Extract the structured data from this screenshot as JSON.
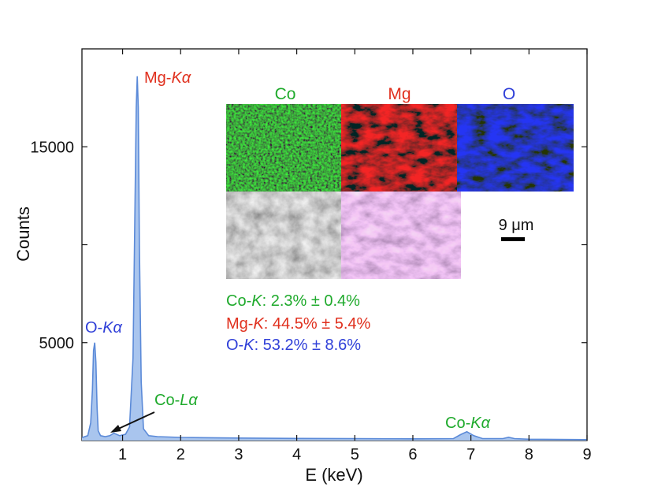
{
  "chart_data": {
    "type": "area",
    "title": "",
    "xlabel": "E (keV)",
    "ylabel": "Counts",
    "xlim": [
      0.3,
      9
    ],
    "ylim": [
      0,
      20000
    ],
    "x_ticks": [
      1,
      2,
      3,
      4,
      5,
      6,
      7,
      8,
      9
    ],
    "y_ticks": [
      5000,
      15000
    ],
    "grid": false,
    "colors": {
      "spectrum_fill": "#a9c5ee",
      "spectrum_line": "#5b8ad8",
      "co": "#1faa2c",
      "mg": "#e0301e",
      "o": "#2f3fd8"
    },
    "series": [
      {
        "x": [
          0.3,
          0.4,
          0.45,
          0.48,
          0.5,
          0.52,
          0.54,
          0.56,
          0.58,
          0.62,
          0.7,
          0.78,
          0.85,
          0.95,
          1.05,
          1.12,
          1.18,
          1.21,
          1.235,
          1.253,
          1.27,
          1.29,
          1.32,
          1.36,
          1.45,
          1.6,
          2.0,
          3.0,
          4.0,
          5.0,
          6.0,
          6.7,
          6.82,
          6.93,
          7.05,
          7.2,
          7.55,
          7.65,
          7.75,
          8.0,
          9.0
        ],
        "y": [
          150,
          250,
          900,
          2600,
          4600,
          5000,
          4000,
          1700,
          500,
          250,
          200,
          250,
          380,
          250,
          320,
          700,
          4200,
          11000,
          17000,
          18600,
          17000,
          10000,
          3000,
          600,
          250,
          200,
          160,
          130,
          110,
          100,
          90,
          100,
          300,
          450,
          250,
          100,
          100,
          170,
          100,
          70,
          50
        ]
      }
    ],
    "peak_labels": [
      {
        "element": "O-",
        "line": "Kα",
        "color": "o"
      },
      {
        "element": "Mg-",
        "line": "Kα",
        "color": "mg"
      },
      {
        "element": "Co-",
        "line": "Lα",
        "color": "co"
      },
      {
        "element": "Co-",
        "line": "Kα",
        "color": "co"
      }
    ]
  },
  "inset": {
    "map_titles": [
      "Co",
      "Mg",
      "O"
    ],
    "scale_bar": "9 μm"
  },
  "composition": [
    {
      "element": "Co-",
      "line": "K",
      "value": ": 2.3% ± 0.4%",
      "color": "co"
    },
    {
      "element": "Mg-",
      "line": "K",
      "value": ": 44.5% ± 5.4%",
      "color": "mg"
    },
    {
      "element": "O-",
      "line": "K",
      "value": ": 53.2% ± 8.6%",
      "color": "o"
    }
  ]
}
